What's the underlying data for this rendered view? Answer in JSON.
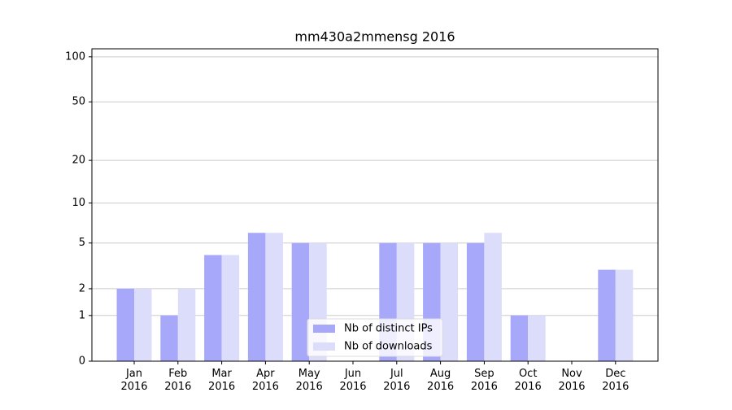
{
  "chart_data": {
    "type": "bar",
    "title": "mm430a2mmensg 2016",
    "categories": [
      "Jan\n2016",
      "Feb\n2016",
      "Mar\n2016",
      "Apr\n2016",
      "May\n2016",
      "Jun\n2016",
      "Jul\n2016",
      "Aug\n2016",
      "Sep\n2016",
      "Oct\n2016",
      "Nov\n2016",
      "Dec\n2016"
    ],
    "series": [
      {
        "name": "Nb of distinct IPs",
        "color": "#a8a8fa",
        "values": [
          2,
          1,
          4,
          6,
          5,
          0,
          5,
          5,
          5,
          1,
          0,
          3
        ]
      },
      {
        "name": "Nb of downloads",
        "color": "#dcdcfb",
        "values": [
          2,
          2,
          4,
          6,
          5,
          0,
          5,
          5,
          6,
          1,
          0,
          3
        ]
      }
    ],
    "yscale": "log1p",
    "ylim": [
      0,
      113
    ],
    "yticks": [
      0,
      1,
      2,
      5,
      10,
      20,
      50,
      100
    ],
    "grid": true,
    "legend": "lower center"
  }
}
